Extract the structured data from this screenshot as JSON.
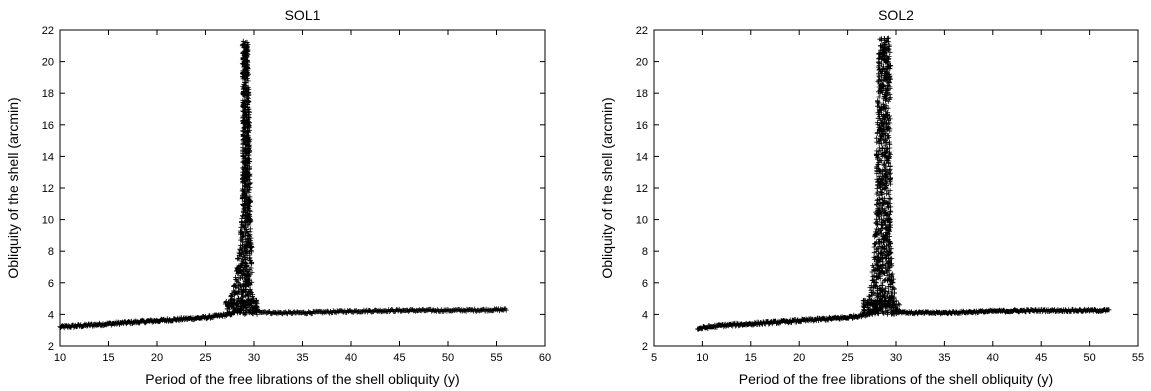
{
  "chart_data": [
    {
      "type": "scatter",
      "title": "SOL1",
      "xlabel": "Period of the free librations of the shell obliquity (y)",
      "ylabel": "Obliquity of the shell (arcmin)",
      "xlim": [
        10,
        60
      ],
      "ylim": [
        2,
        22
      ],
      "xticks": [
        10,
        15,
        20,
        25,
        30,
        35,
        40,
        45,
        50,
        55,
        60
      ],
      "yticks": [
        2,
        4,
        6,
        8,
        10,
        12,
        14,
        16,
        18,
        20,
        22
      ],
      "marker": "+",
      "grid": false,
      "series": [
        {
          "baseline": {
            "x": [
              10.0,
              15.0,
              20.0,
              25.0,
              27.5,
              28.5
            ],
            "y": [
              3.2,
              3.4,
              3.6,
              3.8,
              4.0,
              4.3
            ]
          },
          "tail": {
            "x": [
              30.5,
              32.0,
              35.0,
              40.0,
              45.0,
              50.0,
              56.0
            ],
            "y": [
              4.2,
              4.1,
              4.1,
              4.2,
              4.25,
              4.25,
              4.3
            ]
          },
          "peak_center": [
            28.7,
            28.9,
            29.1,
            29.2,
            29.2,
            29.2,
            29.1,
            29.1
          ],
          "peak_levels": [
            4.5,
            6.0,
            8.0,
            10.0,
            12.0,
            16.0,
            20.0,
            21.3
          ],
          "peak_halfwidth": [
            1.4,
            0.9,
            0.7,
            0.5,
            0.4,
            0.35,
            0.3,
            0.3
          ]
        }
      ]
    },
    {
      "type": "scatter",
      "title": "SOL2",
      "xlabel": "Period of the free librations of the shell obliquity (y)",
      "ylabel": "Obliquity of the shell (arcmin)",
      "xlim": [
        5,
        55
      ],
      "ylim": [
        2,
        22
      ],
      "xticks": [
        5,
        10,
        15,
        20,
        25,
        30,
        35,
        40,
        45,
        50,
        55
      ],
      "yticks": [
        2,
        4,
        6,
        8,
        10,
        12,
        14,
        16,
        18,
        20,
        22
      ],
      "marker": "+",
      "grid": false,
      "series": [
        {
          "baseline": {
            "x": [
              9.5,
              12.0,
              15.0,
              20.0,
              25.0,
              27.0,
              28.0
            ],
            "y": [
              3.1,
              3.3,
              3.4,
              3.6,
              3.8,
              4.0,
              4.3
            ]
          },
          "tail": {
            "x": [
              30.0,
              31.5,
              35.0,
              40.0,
              45.0,
              50.0,
              52.0
            ],
            "y": [
              4.2,
              4.1,
              4.1,
              4.2,
              4.25,
              4.25,
              4.25
            ]
          },
          "peak_center": [
            28.5,
            28.6,
            28.6,
            28.7,
            28.7,
            28.7,
            28.8,
            28.8
          ],
          "peak_levels": [
            4.5,
            6.0,
            8.0,
            10.0,
            12.0,
            16.0,
            20.0,
            21.5
          ],
          "peak_halfwidth": [
            1.6,
            1.2,
            0.9,
            0.8,
            0.75,
            0.7,
            0.65,
            0.5
          ]
        }
      ]
    }
  ]
}
